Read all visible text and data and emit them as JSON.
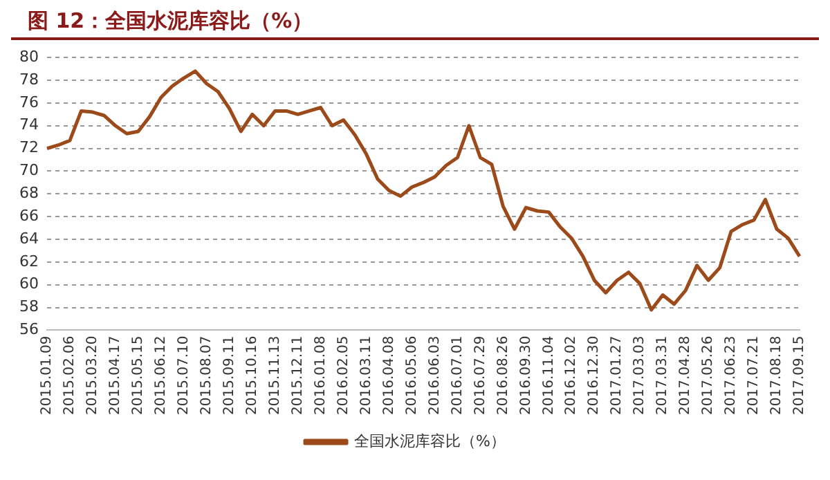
{
  "chart_data": {
    "type": "line",
    "title": "图 12：全国水泥库容比（%）",
    "categories": [
      "2015.01.09",
      null,
      "2015.02.06",
      null,
      "2015.03.20",
      null,
      "2015.04.17",
      null,
      "2015.05.15",
      null,
      "2015.06.12",
      null,
      "2015.07.10",
      null,
      "2015.08.07",
      null,
      "2015.09.11",
      null,
      "2015.10.16",
      null,
      "2015.11.13",
      null,
      "2015.12.11",
      null,
      "2016.01.08",
      null,
      "2016.02.05",
      null,
      "2016.03.11",
      null,
      "2016.04.08",
      null,
      "2016.05.06",
      null,
      "2016.06.03",
      null,
      "2016.07.01",
      null,
      "2016.07.29",
      null,
      "2016.08.26",
      null,
      "2016.09.30",
      null,
      "2016.11.04",
      null,
      "2016.12.02",
      null,
      "2016.12.30",
      null,
      "2017.01.27",
      null,
      "2017.03.03",
      null,
      "2017.03.31",
      null,
      "2017.04.28",
      null,
      "2017.05.26",
      null,
      "2017.06.23",
      null,
      "2017.07.21",
      null,
      "2017.08.18",
      null,
      "2017.09.15"
    ],
    "series": [
      {
        "name": "全国水泥库容比（%）",
        "color": "#9c4a1a",
        "values": [
          72.0,
          72.3,
          72.7,
          75.3,
          75.2,
          74.9,
          74.0,
          73.3,
          73.5,
          74.8,
          76.5,
          77.5,
          78.2,
          78.8,
          77.7,
          77.0,
          75.5,
          73.5,
          75.0,
          74.0,
          75.3,
          75.3,
          75.0,
          75.3,
          75.6,
          74.0,
          74.5,
          73.2,
          71.5,
          69.3,
          68.3,
          67.8,
          68.6,
          69.0,
          69.5,
          70.5,
          71.2,
          74.0,
          71.2,
          70.6,
          66.9,
          64.9,
          66.8,
          66.5,
          66.4,
          65.1,
          64.1,
          62.5,
          60.4,
          59.3,
          60.4,
          61.1,
          60.1,
          57.8,
          59.1,
          58.3,
          59.5,
          61.7,
          60.4,
          61.5,
          64.7,
          65.3,
          65.7,
          67.5,
          64.9,
          64.1,
          62.5
        ]
      }
    ],
    "ylim": [
      56,
      80
    ],
    "yticks": [
      56,
      58,
      60,
      62,
      64,
      66,
      68,
      70,
      72,
      74,
      76,
      78,
      80
    ],
    "grid": "y",
    "legend": "bottom",
    "marker": "none",
    "line_style": "solid"
  }
}
